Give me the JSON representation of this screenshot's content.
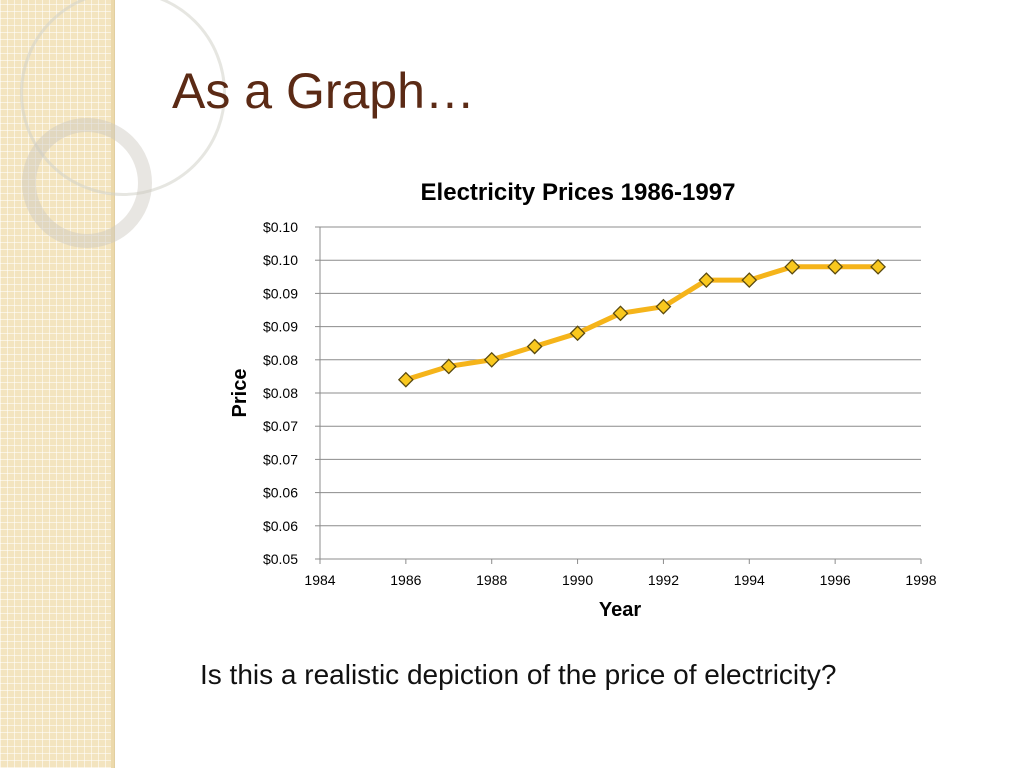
{
  "slide": {
    "title": "As a Graph…",
    "caption": "Is this a realistic depiction of the price of electricity?"
  },
  "colors": {
    "title": "#5b2a15",
    "line": "#f5b41a",
    "marker_fill": "#f9c81e",
    "marker_stroke": "#5a4a10",
    "gridline": "#8c8c8c",
    "sidebar": "#f3e4bf"
  },
  "chart_data": {
    "type": "line",
    "title": "Electricity Prices 1986-1997",
    "xlabel": "Year",
    "ylabel": "Price",
    "xlim": [
      1984,
      1998
    ],
    "ylim": [
      0.05,
      0.1
    ],
    "x_ticks": [
      1984,
      1986,
      1988,
      1990,
      1992,
      1994,
      1996,
      1998
    ],
    "x_tick_labels": [
      "1984",
      "1986",
      "1988",
      "1990",
      "1992",
      "1994",
      "1996",
      "1998"
    ],
    "y_ticks": [
      0.05,
      0.055,
      0.06,
      0.065,
      0.07,
      0.075,
      0.08,
      0.085,
      0.09,
      0.095,
      0.1
    ],
    "y_tick_labels": [
      "$0.05",
      "$0.06",
      "$0.06",
      "$0.07",
      "$0.07",
      "$0.08",
      "$0.08",
      "$0.09",
      "$0.09",
      "$0.10",
      "$0.10"
    ],
    "grid": "horizontal",
    "legend": "none",
    "marker": "diamond",
    "series": [
      {
        "x": [
          1986,
          1987,
          1988,
          1989,
          1990,
          1991,
          1992,
          1993,
          1994,
          1995,
          1996,
          1997
        ],
        "values": [
          0.077,
          0.079,
          0.08,
          0.082,
          0.084,
          0.087,
          0.088,
          0.092,
          0.092,
          0.094,
          0.094,
          0.094
        ]
      }
    ]
  }
}
